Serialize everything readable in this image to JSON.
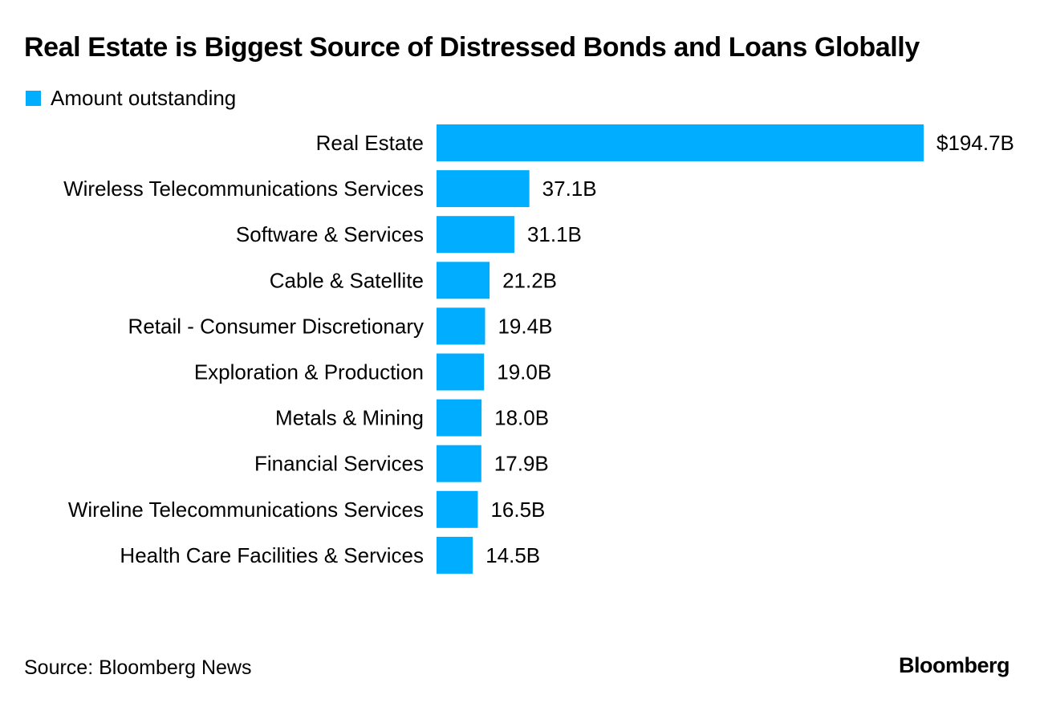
{
  "chart_data": {
    "type": "bar",
    "orientation": "horizontal",
    "title": "Real Estate is Biggest Source of Distressed Bonds and Loans Globally",
    "legend": "Amount outstanding",
    "legend_position": "top-left",
    "categories": [
      "Real Estate",
      "Wireless Telecommunications Services",
      "Software & Services",
      "Cable & Satellite",
      "Retail - Consumer Discretionary",
      "Exploration & Production",
      "Metals & Mining",
      "Financial Services",
      "Wireline Telecommunications Services",
      "Health Care Facilities & Services"
    ],
    "values": [
      194.7,
      37.1,
      31.1,
      21.2,
      19.4,
      19.0,
      18.0,
      17.9,
      16.5,
      14.5
    ],
    "value_labels": [
      "$194.7B",
      "37.1B",
      "31.1B",
      "21.2B",
      "19.4B",
      "19.0B",
      "18.0B",
      "17.9B",
      "16.5B",
      "14.5B"
    ],
    "unit": "B",
    "xlim": [
      0,
      194.7
    ],
    "grid": false,
    "bar_color": "#00adff"
  },
  "footer": {
    "source": "Source: Bloomberg News",
    "brand": "Bloomberg"
  }
}
